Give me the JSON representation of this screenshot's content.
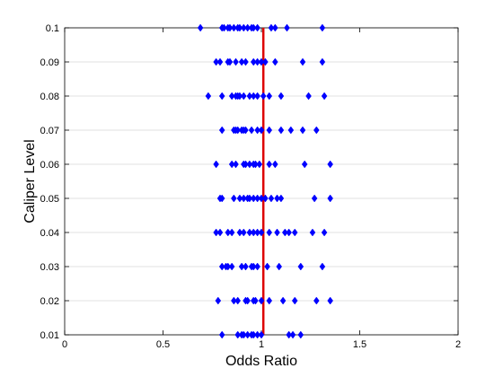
{
  "chart_data": {
    "type": "scatter",
    "xlabel": "Odds Ratio",
    "ylabel": "Caliper Level",
    "xlim": [
      0,
      2
    ],
    "ylim": [
      0.01,
      0.1
    ],
    "x_ticks": [
      "0",
      "0.5",
      "1",
      "1.5",
      "2"
    ],
    "y_ticks": [
      "0.01",
      "0.02",
      "0.03",
      "0.04",
      "0.05",
      "0.06",
      "0.07",
      "0.08",
      "0.09",
      "0.1"
    ],
    "grid": "y-major",
    "marker": "diamond",
    "marker_color": "#0000ff",
    "reference_line": {
      "x": 1.01,
      "color": "#dd0000"
    },
    "series": [
      {
        "values": [
          {
            "caliper": 0.1,
            "odds_ratio": [
              0.69,
              0.8,
              0.81,
              0.83,
              0.84,
              0.86,
              0.88,
              0.89,
              0.91,
              0.93,
              0.95,
              0.96,
              0.98,
              1.05,
              1.07,
              1.13,
              1.31
            ]
          },
          {
            "caliper": 0.09,
            "odds_ratio": [
              0.77,
              0.79,
              0.83,
              0.84,
              0.87,
              0.9,
              0.92,
              0.96,
              0.98,
              1.0,
              1.02,
              1.07,
              1.21,
              1.31
            ]
          },
          {
            "caliper": 0.08,
            "odds_ratio": [
              0.73,
              0.8,
              0.85,
              0.87,
              0.88,
              0.89,
              0.91,
              0.94,
              0.96,
              0.98,
              1.01,
              1.04,
              1.1,
              1.24,
              1.32
            ]
          },
          {
            "caliper": 0.07,
            "odds_ratio": [
              0.8,
              0.86,
              0.87,
              0.88,
              0.9,
              0.91,
              0.92,
              0.95,
              0.98,
              1.0,
              1.04,
              1.1,
              1.15,
              1.21,
              1.28
            ]
          },
          {
            "caliper": 0.06,
            "odds_ratio": [
              0.77,
              0.85,
              0.87,
              0.91,
              0.92,
              0.94,
              0.96,
              0.97,
              0.99,
              1.04,
              1.07,
              1.22,
              1.35
            ]
          },
          {
            "caliper": 0.05,
            "odds_ratio": [
              0.79,
              0.8,
              0.86,
              0.89,
              0.91,
              0.93,
              0.94,
              0.96,
              0.98,
              1.0,
              1.02,
              1.05,
              1.08,
              1.1,
              1.27,
              1.35
            ]
          },
          {
            "caliper": 0.04,
            "odds_ratio": [
              0.77,
              0.79,
              0.83,
              0.85,
              0.89,
              0.91,
              0.94,
              0.96,
              0.98,
              1.0,
              1.04,
              1.08,
              1.12,
              1.14,
              1.17,
              1.26,
              1.32
            ]
          },
          {
            "caliper": 0.03,
            "odds_ratio": [
              0.8,
              0.82,
              0.83,
              0.85,
              0.9,
              0.92,
              0.95,
              0.96,
              0.98,
              1.03,
              1.09,
              1.2,
              1.31
            ]
          },
          {
            "caliper": 0.02,
            "odds_ratio": [
              0.78,
              0.86,
              0.88,
              0.92,
              0.93,
              0.96,
              0.97,
              1.0,
              1.04,
              1.11,
              1.17,
              1.28,
              1.35
            ]
          },
          {
            "caliper": 0.01,
            "odds_ratio": [
              0.8,
              0.88,
              0.9,
              0.91,
              0.93,
              0.95,
              0.96,
              0.98,
              1.0,
              1.14,
              1.16,
              1.2
            ]
          }
        ]
      }
    ]
  }
}
